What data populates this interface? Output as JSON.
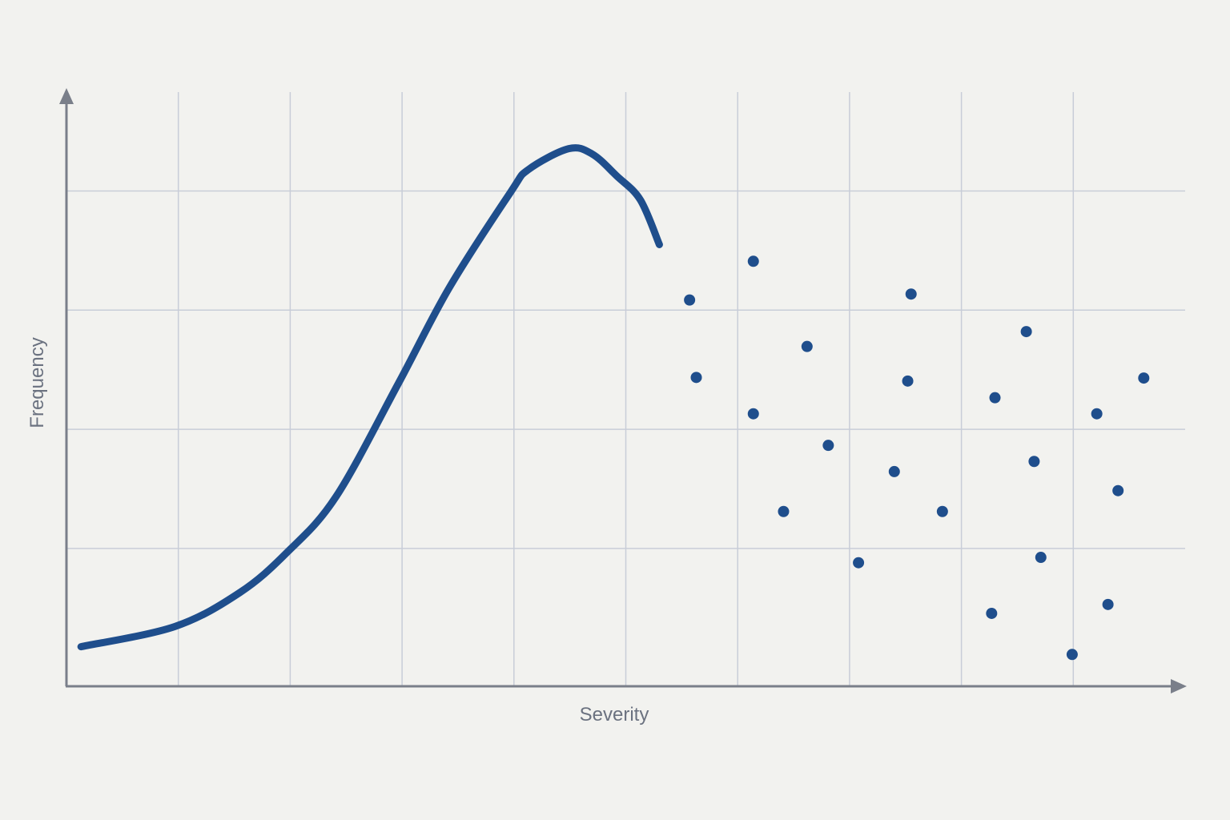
{
  "chart_data": {
    "type": "line",
    "x_label": "Severity",
    "y_label": "Frequency",
    "xlim": [
      0,
      100
    ],
    "ylim": [
      0,
      100
    ],
    "xticks": [
      10,
      20,
      30,
      40,
      50,
      60,
      70,
      80,
      90
    ],
    "yticks": [
      23,
      43,
      63,
      83
    ],
    "grid": true,
    "series": [
      {
        "type": "line",
        "color": "#1f4e8c",
        "x": [
          1.3,
          9.7,
          15.5,
          19.7,
          24.1,
          29.7,
          34.2,
          39.7,
          41.3,
          44.9,
          47.0,
          49.2,
          51.3,
          53.0
        ],
        "values": [
          6.5,
          9.9,
          15.6,
          22.3,
          31.7,
          50.8,
          66.7,
          82.8,
          86.6,
          90.1,
          89.2,
          85.5,
          81.5,
          74.0
        ]
      },
      {
        "type": "scatter",
        "color": "#1f4e8c",
        "x": [
          55.7,
          61.4,
          56.3,
          61.4,
          66.2,
          64.1,
          68.1,
          75.5,
          75.2,
          74.0,
          78.3,
          70.8,
          85.8,
          83.0,
          86.5,
          87.1,
          82.7,
          89.9,
          93.1,
          94.0,
          92.1,
          96.3
        ],
        "values": [
          64.7,
          71.2,
          51.7,
          45.6,
          56.9,
          29.2,
          40.3,
          65.7,
          51.1,
          35.9,
          29.2,
          20.6,
          59.4,
          48.3,
          37.6,
          21.5,
          12.1,
          5.2,
          13.6,
          32.7,
          45.6,
          51.6
        ]
      }
    ]
  }
}
